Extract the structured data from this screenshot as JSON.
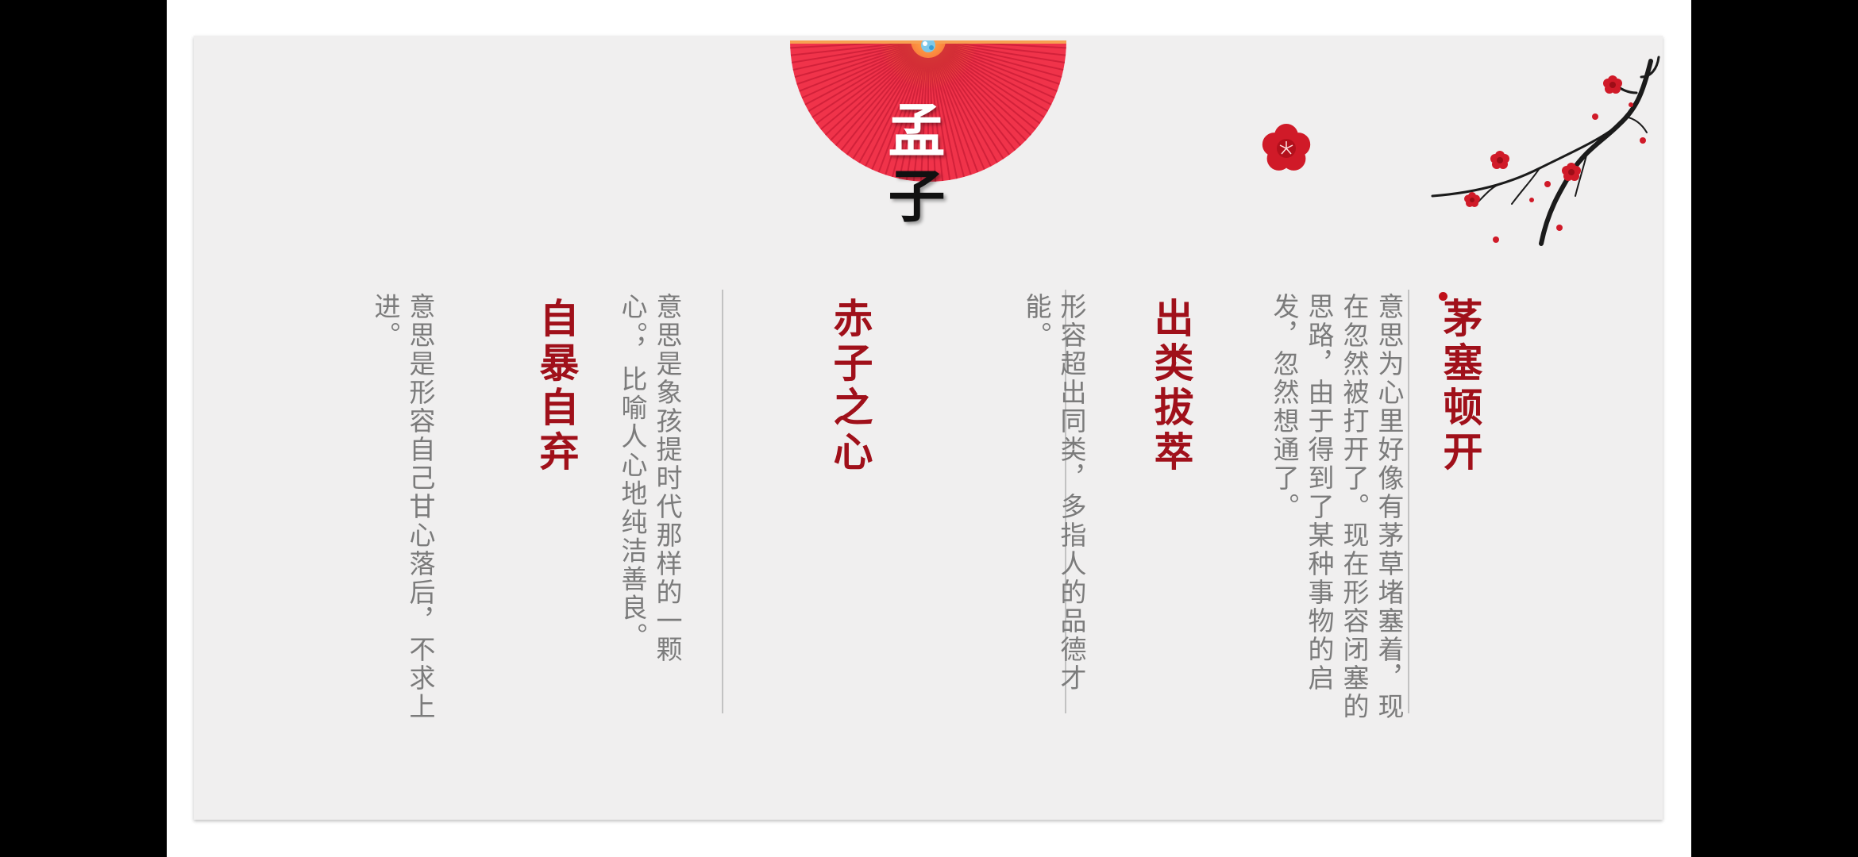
{
  "slide": {
    "title_char_1": "孟",
    "title_char_2": "子",
    "idioms": [
      {
        "heading": "茅塞顿开",
        "text": "意思为心里好像有茅草堵塞着，现在忽然被打开了。现在形容闭塞的思路，由于得到了某种事物的启发，忽然想通了。"
      },
      {
        "heading": "出类拔萃",
        "text": "形容超出同类，多指人的品德才能。"
      },
      {
        "heading": "赤子之心",
        "text": "意思是象孩提时代那样的一颗心。，比喻人心地纯洁善良。"
      },
      {
        "heading": "自暴自弃",
        "text": "意思是形容自己甘心落后，不求上进。"
      }
    ]
  },
  "colors": {
    "heading": "#a0101a",
    "body_text": "#7b7b7b",
    "fan": "#f0334a",
    "plum_blossom": "#d01a28",
    "slide_background": "#f0efef"
  },
  "icons": {
    "fan": "folding-fan-icon",
    "blossom": "plum-blossom-icon",
    "branch": "plum-branch-icon"
  }
}
